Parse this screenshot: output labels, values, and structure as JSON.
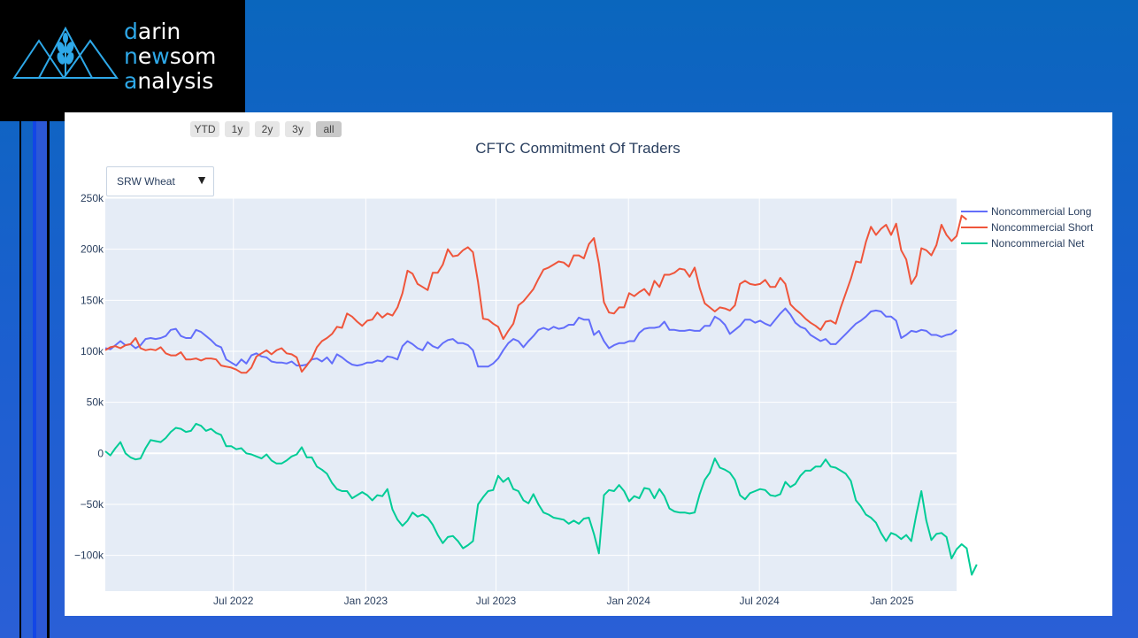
{
  "logo": {
    "lines": [
      {
        "hl": "d",
        "rest": "arin"
      },
      {
        "hl": "n",
        "mid": "e",
        "hl2": "w",
        "rest": "som"
      },
      {
        "hl": "a",
        "rest": "nalysis"
      }
    ],
    "accent_color": "#2ea8e8",
    "icon": "wheat-mountains-icon"
  },
  "range_buttons": [
    "YTD",
    "1y",
    "2y",
    "3y",
    "all"
  ],
  "active_range": "all",
  "dropdown": {
    "selected": "SRW Wheat",
    "icon": "caret-down-icon"
  },
  "chart_data": {
    "type": "line",
    "title": "CFTC Commitment Of Traders",
    "xlabel": "",
    "ylabel": "",
    "x_start": "2022-01-04",
    "x_step_days": 7,
    "x_ticks": [
      "Jul 2022",
      "Jan 2023",
      "Jul 2023",
      "Jan 2024",
      "Jul 2024",
      "Jan 2025"
    ],
    "x_tick_dates": [
      "2022-07-01",
      "2023-01-01",
      "2023-07-01",
      "2024-01-01",
      "2024-07-01",
      "2025-01-01"
    ],
    "ylim": [
      -135000,
      250000
    ],
    "y_ticks": [
      250000,
      200000,
      150000,
      100000,
      50000,
      0,
      -50000,
      -100000
    ],
    "y_tick_labels": [
      "250k",
      "200k",
      "150k",
      "100k",
      "50k",
      "0",
      "−50k",
      "−100k"
    ],
    "grid": true,
    "legend_position": "top-right",
    "series": [
      {
        "name": "Noncommercial Long",
        "color": "#636efa",
        "values": [
          103000,
          102000,
          106000,
          110000,
          106000,
          107000,
          103000,
          106000,
          112000,
          113000,
          112000,
          113000,
          115000,
          121000,
          122000,
          115000,
          113000,
          113000,
          121000,
          119000,
          115000,
          111000,
          106000,
          104000,
          92000,
          89000,
          86000,
          92000,
          88000,
          96000,
          98000,
          95000,
          94000,
          90000,
          89000,
          89000,
          88000,
          90000,
          86000,
          86000,
          87000,
          92000,
          93000,
          90000,
          94000,
          88000,
          97000,
          94000,
          90000,
          87000,
          86000,
          87000,
          89000,
          89000,
          91000,
          90000,
          95000,
          94000,
          92000,
          105000,
          110000,
          107000,
          103000,
          101000,
          109000,
          105000,
          103000,
          108000,
          111000,
          112000,
          108000,
          108000,
          106000,
          101000,
          85000,
          85000,
          85000,
          88000,
          93000,
          101000,
          108000,
          112000,
          110000,
          104000,
          110000,
          115000,
          121000,
          123000,
          121000,
          124000,
          122000,
          123000,
          126000,
          126000,
          133000,
          131000,
          131000,
          116000,
          120000,
          110000,
          103000,
          106000,
          108000,
          108000,
          110000,
          110000,
          118000,
          122000,
          123000,
          123000,
          124000,
          129000,
          121000,
          121000,
          120000,
          120000,
          121000,
          120000,
          120000,
          125000,
          125000,
          134000,
          131000,
          126000,
          117000,
          121000,
          125000,
          131000,
          131000,
          128000,
          130000,
          127000,
          125000,
          131000,
          137000,
          142000,
          136000,
          128000,
          124000,
          122000,
          116000,
          113000,
          110000,
          112000,
          107000,
          107000,
          112000,
          117000,
          122000,
          127000,
          130000,
          134000,
          139000,
          140000,
          139000,
          134000,
          134000,
          130000,
          113000,
          116000,
          120000,
          119000,
          121000,
          120000,
          116000,
          116000,
          114000,
          116000,
          117000,
          121000
        ],
        "label_text": "Noncommercial Long"
      },
      {
        "name": "Noncommercial Short",
        "color": "#ef553b",
        "values": [
          101000,
          104000,
          105000,
          103000,
          106000,
          107000,
          113000,
          103000,
          101000,
          102000,
          101000,
          104000,
          98000,
          96000,
          96000,
          99000,
          92000,
          92000,
          93000,
          91000,
          93000,
          93000,
          92000,
          86000,
          85000,
          84000,
          82000,
          79000,
          79000,
          84000,
          95000,
          98000,
          101000,
          97000,
          101000,
          103000,
          98000,
          97000,
          94000,
          80000,
          86000,
          93000,
          104000,
          110000,
          113000,
          117000,
          124000,
          123000,
          137000,
          134000,
          129000,
          125000,
          130000,
          131000,
          138000,
          133000,
          137000,
          135000,
          143000,
          157000,
          179000,
          176000,
          166000,
          163000,
          160000,
          177000,
          177000,
          185000,
          200000,
          193000,
          194000,
          199000,
          202000,
          197000,
          168000,
          132000,
          131000,
          127000,
          124000,
          112000,
          120000,
          127000,
          145000,
          149000,
          155000,
          161000,
          171000,
          180000,
          182000,
          185000,
          188000,
          187000,
          183000,
          194000,
          194000,
          191000,
          205000,
          211000,
          186000,
          148000,
          138000,
          137000,
          143000,
          143000,
          157000,
          154000,
          158000,
          161000,
          155000,
          169000,
          163000,
          175000,
          175000,
          177000,
          181000,
          180000,
          173000,
          182000,
          162000,
          147000,
          143000,
          139000,
          143000,
          142000,
          140000,
          145000,
          166000,
          169000,
          166000,
          165000,
          166000,
          170000,
          163000,
          163000,
          172000,
          166000,
          146000,
          141000,
          137000,
          132000,
          128000,
          125000,
          121000,
          129000,
          130000,
          127000,
          143000,
          157000,
          171000,
          188000,
          187000,
          207000,
          222000,
          214000,
          220000,
          224000,
          214000,
          225000,
          199000,
          190000,
          166000,
          174000,
          201000,
          199000,
          194000,
          204000,
          224000,
          214000,
          208000,
          213000,
          233000,
          229000
        ],
        "label_text": "Noncommercial Short"
      },
      {
        "name": "Noncommercial Net",
        "color": "#00cc96",
        "values": [
          2000,
          -2000,
          5000,
          11000,
          0,
          -4000,
          -6000,
          -5000,
          5000,
          13000,
          12000,
          11000,
          15000,
          21000,
          25000,
          24000,
          21000,
          22000,
          29000,
          27000,
          22000,
          24000,
          20000,
          18000,
          7000,
          7000,
          4000,
          5000,
          0,
          -1000,
          -3000,
          -5000,
          -1000,
          -7000,
          -10000,
          -10000,
          -7000,
          -3000,
          -1000,
          6000,
          -4000,
          -4000,
          -13000,
          -16000,
          -20000,
          -29000,
          -35000,
          -37000,
          -37000,
          -44000,
          -41000,
          -38000,
          -41000,
          -46000,
          -41000,
          -42000,
          -35000,
          -55000,
          -65000,
          -71000,
          -66000,
          -58000,
          -62000,
          -60000,
          -63000,
          -70000,
          -80000,
          -88000,
          -82000,
          -81000,
          -86000,
          -93000,
          -90000,
          -86000,
          -50000,
          -43000,
          -37000,
          -36000,
          -22000,
          -28000,
          -24000,
          -35000,
          -37000,
          -46000,
          -49000,
          -40000,
          -50000,
          -58000,
          -60000,
          -63000,
          -64000,
          -65000,
          -69000,
          -66000,
          -69000,
          -64000,
          -63000,
          -79000,
          -98000,
          -41000,
          -36000,
          -37000,
          -31000,
          -37000,
          -47000,
          -42000,
          -44000,
          -34000,
          -35000,
          -44000,
          -35000,
          -42000,
          -54000,
          -57000,
          -58000,
          -58000,
          -59000,
          -58000,
          -40000,
          -26000,
          -19000,
          -5000,
          -14000,
          -16000,
          -19000,
          -26000,
          -41000,
          -45000,
          -39000,
          -37000,
          -35000,
          -36000,
          -41000,
          -42000,
          -40000,
          -28000,
          -33000,
          -30000,
          -22000,
          -17000,
          -17000,
          -13000,
          -13000,
          -6000,
          -13000,
          -14000,
          -17000,
          -20000,
          -27000,
          -46000,
          -52000,
          -60000,
          -63000,
          -68000,
          -78000,
          -86000,
          -78000,
          -80000,
          -84000,
          -80000,
          -86000,
          -60000,
          -37000,
          -66000,
          -85000,
          -79000,
          -78000,
          -82000,
          -103000,
          -94000,
          -89000,
          -93000,
          -119000,
          -109000
        ],
        "label_text": "Noncommercial Net"
      }
    ]
  }
}
